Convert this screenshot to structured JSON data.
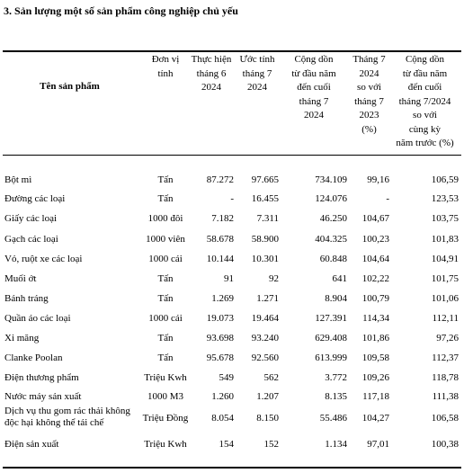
{
  "title": "3. Sản lượng một số sản phẩm công nghiệp chủ yếu",
  "table": {
    "header": [
      "Tên sản phẩm",
      "Đơn vị\ntính",
      "Thực hiện\ntháng 6\n2024",
      "Ước tính\ntháng 7\n2024",
      "Cộng dồn\ntừ đầu năm\nđến cuối\ntháng 7\n2024",
      "Tháng 7\n2024\nso với\ntháng 7\n2023\n(%)",
      "Cộng dồn\ntừ đầu năm\nđến cuối\ntháng 7/2024\nso với\ncùng kỳ\nnăm trước (%)"
    ],
    "rows": [
      [
        "Bột mì",
        "Tấn",
        "87.272",
        "97.665",
        "734.109",
        "99,16",
        "106,59"
      ],
      [
        "Đường các loại",
        "Tấn",
        "-",
        "16.455",
        "124.076",
        "-",
        "123,53"
      ],
      [
        "Giấy các loại",
        "1000 đôi",
        "7.182",
        "7.311",
        "46.250",
        "104,67",
        "103,75"
      ],
      [
        "Gạch các loại",
        "1000 viên",
        "58.678",
        "58.900",
        "404.325",
        "100,23",
        "101,83"
      ],
      [
        "Vỏ, ruột xe các loại",
        "1000 cái",
        "10.144",
        "10.301",
        "60.848",
        "104,64",
        "104,91"
      ],
      [
        "Muối ớt",
        "Tấn",
        "91",
        "92",
        "641",
        "102,22",
        "101,75"
      ],
      [
        "Bánh tráng",
        "Tấn",
        "1.269",
        "1.271",
        "8.904",
        "100,79",
        "101,06"
      ],
      [
        "Quần áo các loại",
        "1000 cái",
        "19.073",
        "19.464",
        "127.391",
        "114,34",
        "112,11"
      ],
      [
        "Xi măng",
        "Tấn",
        "93.698",
        "93.240",
        "629.408",
        "101,86",
        "97,26"
      ],
      [
        "Clanke Poolan",
        "Tấn",
        "95.678",
        "92.560",
        "613.999",
        "109,58",
        "112,37"
      ],
      [
        "Điện thương phẩm",
        "Triệu Kwh",
        "549",
        "562",
        "3.772",
        "109,26",
        "118,78"
      ],
      [
        "Nước máy sản xuất",
        "1000 M3",
        "1.260",
        "1.207",
        "8.135",
        "117,18",
        "111,38"
      ],
      [
        "Dịch vụ thu gom rác thải không\nđộc hại không thể tái chế",
        "Triệu Đồng",
        "8.054",
        "8.150",
        "55.486",
        "104,27",
        "106,58"
      ],
      [
        "Điện sản xuất",
        "Triệu Kwh",
        "154",
        "152",
        "1.134",
        "97,01",
        "100,38"
      ]
    ]
  }
}
